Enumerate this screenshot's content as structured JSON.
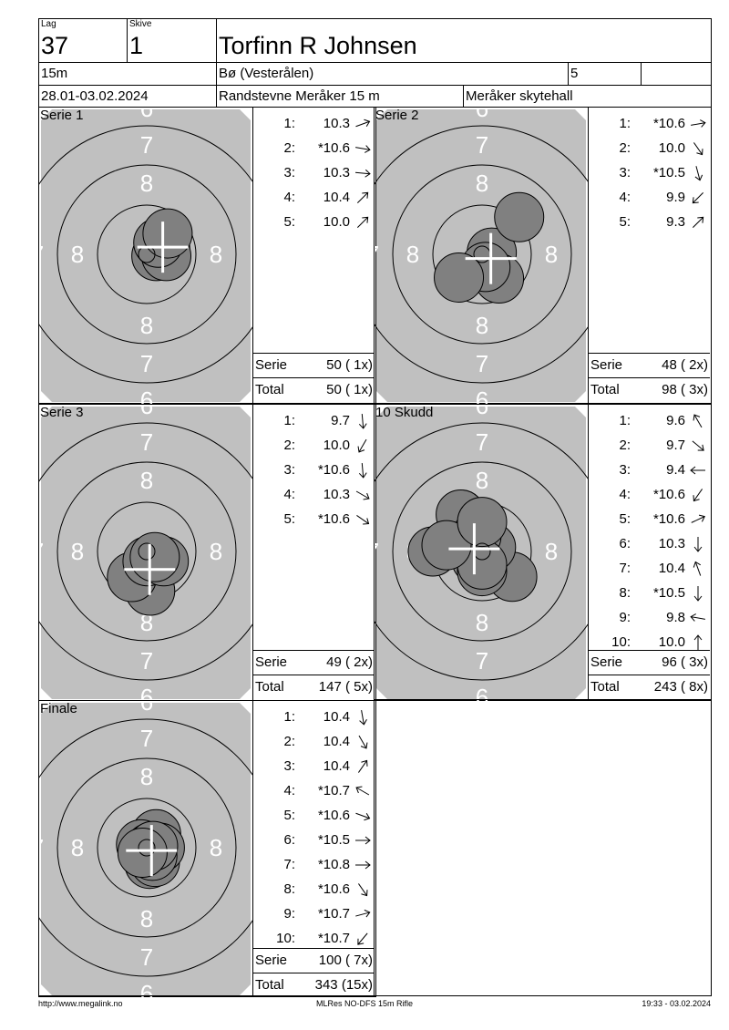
{
  "header": {
    "lag_caption": "Lag",
    "lag": "37",
    "skive_caption": "Skive",
    "skive": "1",
    "name": "Torfinn R Johnsen",
    "distance": "15m",
    "club": "Bø (Vesterålen)",
    "class": "5",
    "extra": "",
    "date": "28.01-03.02.2024",
    "event": "Randstevne Meråker 15 m",
    "venue": "Meråker skytehall"
  },
  "colors": {
    "target": "#c0c0c0",
    "shot": "#808080",
    "ring": "#000000",
    "label": "#ffffff",
    "cross": "#ffffff"
  },
  "target_labels": {
    "inner": "8",
    "middle": "7",
    "outer": "6"
  },
  "panels": [
    {
      "title": "Serie 1",
      "shots": [
        {
          "n": "1:",
          "score": "10.3",
          "dir": 70
        },
        {
          "n": "2:",
          "score": "*10.6",
          "dir": 100
        },
        {
          "n": "3:",
          "score": "10.3",
          "dir": 95
        },
        {
          "n": "4:",
          "score": "10.4",
          "dir": 45
        },
        {
          "n": "5:",
          "score": "10.0",
          "dir": 45
        }
      ],
      "serie_label": "Serie",
      "serie": "50 ( 1x)",
      "total_label": "Total",
      "total": "50 ( 1x)"
    },
    {
      "title": "Serie 2",
      "shots": [
        {
          "n": "1:",
          "score": "*10.6",
          "dir": 80
        },
        {
          "n": "2:",
          "score": "10.0",
          "dir": 145
        },
        {
          "n": "3:",
          "score": "*10.5",
          "dir": 165
        },
        {
          "n": "4:",
          "score": "9.9",
          "dir": 225
        },
        {
          "n": "5:",
          "score": "9.3",
          "dir": 45
        }
      ],
      "serie_label": "Serie",
      "serie": "48 ( 2x)",
      "total_label": "Total",
      "total": "98 ( 3x)"
    },
    {
      "title": "Serie 3",
      "shots": [
        {
          "n": "1:",
          "score": "9.7",
          "dir": 175
        },
        {
          "n": "2:",
          "score": "10.0",
          "dir": 210
        },
        {
          "n": "3:",
          "score": "*10.6",
          "dir": 175
        },
        {
          "n": "4:",
          "score": "10.3",
          "dir": 120
        },
        {
          "n": "5:",
          "score": "*10.6",
          "dir": 125
        }
      ],
      "serie_label": "Serie",
      "serie": "49 ( 2x)",
      "total_label": "Total",
      "total": "147 ( 5x)"
    },
    {
      "title": "10 Skudd",
      "shots": [
        {
          "n": "1:",
          "score": "9.6",
          "dir": 330
        },
        {
          "n": "2:",
          "score": "9.7",
          "dir": 130
        },
        {
          "n": "3:",
          "score": "9.4",
          "dir": 270
        },
        {
          "n": "4:",
          "score": "*10.6",
          "dir": 215
        },
        {
          "n": "5:",
          "score": "*10.6",
          "dir": 65
        },
        {
          "n": "6:",
          "score": "10.3",
          "dir": 180
        },
        {
          "n": "7:",
          "score": "10.4",
          "dir": 340
        },
        {
          "n": "8:",
          "score": "*10.5",
          "dir": 180
        },
        {
          "n": "9:",
          "score": "9.8",
          "dir": 280
        },
        {
          "n": "10:",
          "score": "10.0",
          "dir": 0
        }
      ],
      "serie_label": "Serie",
      "serie": "96 ( 3x)",
      "total_label": "Total",
      "total": "243 ( 8x)"
    },
    {
      "title": "Finale",
      "shots": [
        {
          "n": "1:",
          "score": "10.4",
          "dir": 170
        },
        {
          "n": "2:",
          "score": "10.4",
          "dir": 150
        },
        {
          "n": "3:",
          "score": "10.4",
          "dir": 35
        },
        {
          "n": "4:",
          "score": "*10.7",
          "dir": 300
        },
        {
          "n": "5:",
          "score": "*10.6",
          "dir": 110
        },
        {
          "n": "6:",
          "score": "*10.5",
          "dir": 90
        },
        {
          "n": "7:",
          "score": "*10.8",
          "dir": 90
        },
        {
          "n": "8:",
          "score": "*10.6",
          "dir": 145
        },
        {
          "n": "9:",
          "score": "*10.7",
          "dir": 75
        },
        {
          "n": "10:",
          "score": "*10.7",
          "dir": 220
        }
      ],
      "serie_label": "Serie",
      "serie": "100 ( 7x)",
      "total_label": "Total",
      "total": "343 (15x)"
    }
  ],
  "footer": {
    "left": "http://www.megalink.no",
    "center": "MLRes NO-DFS 15m Rifle",
    "right": "19:33 - 03.02.2024"
  }
}
